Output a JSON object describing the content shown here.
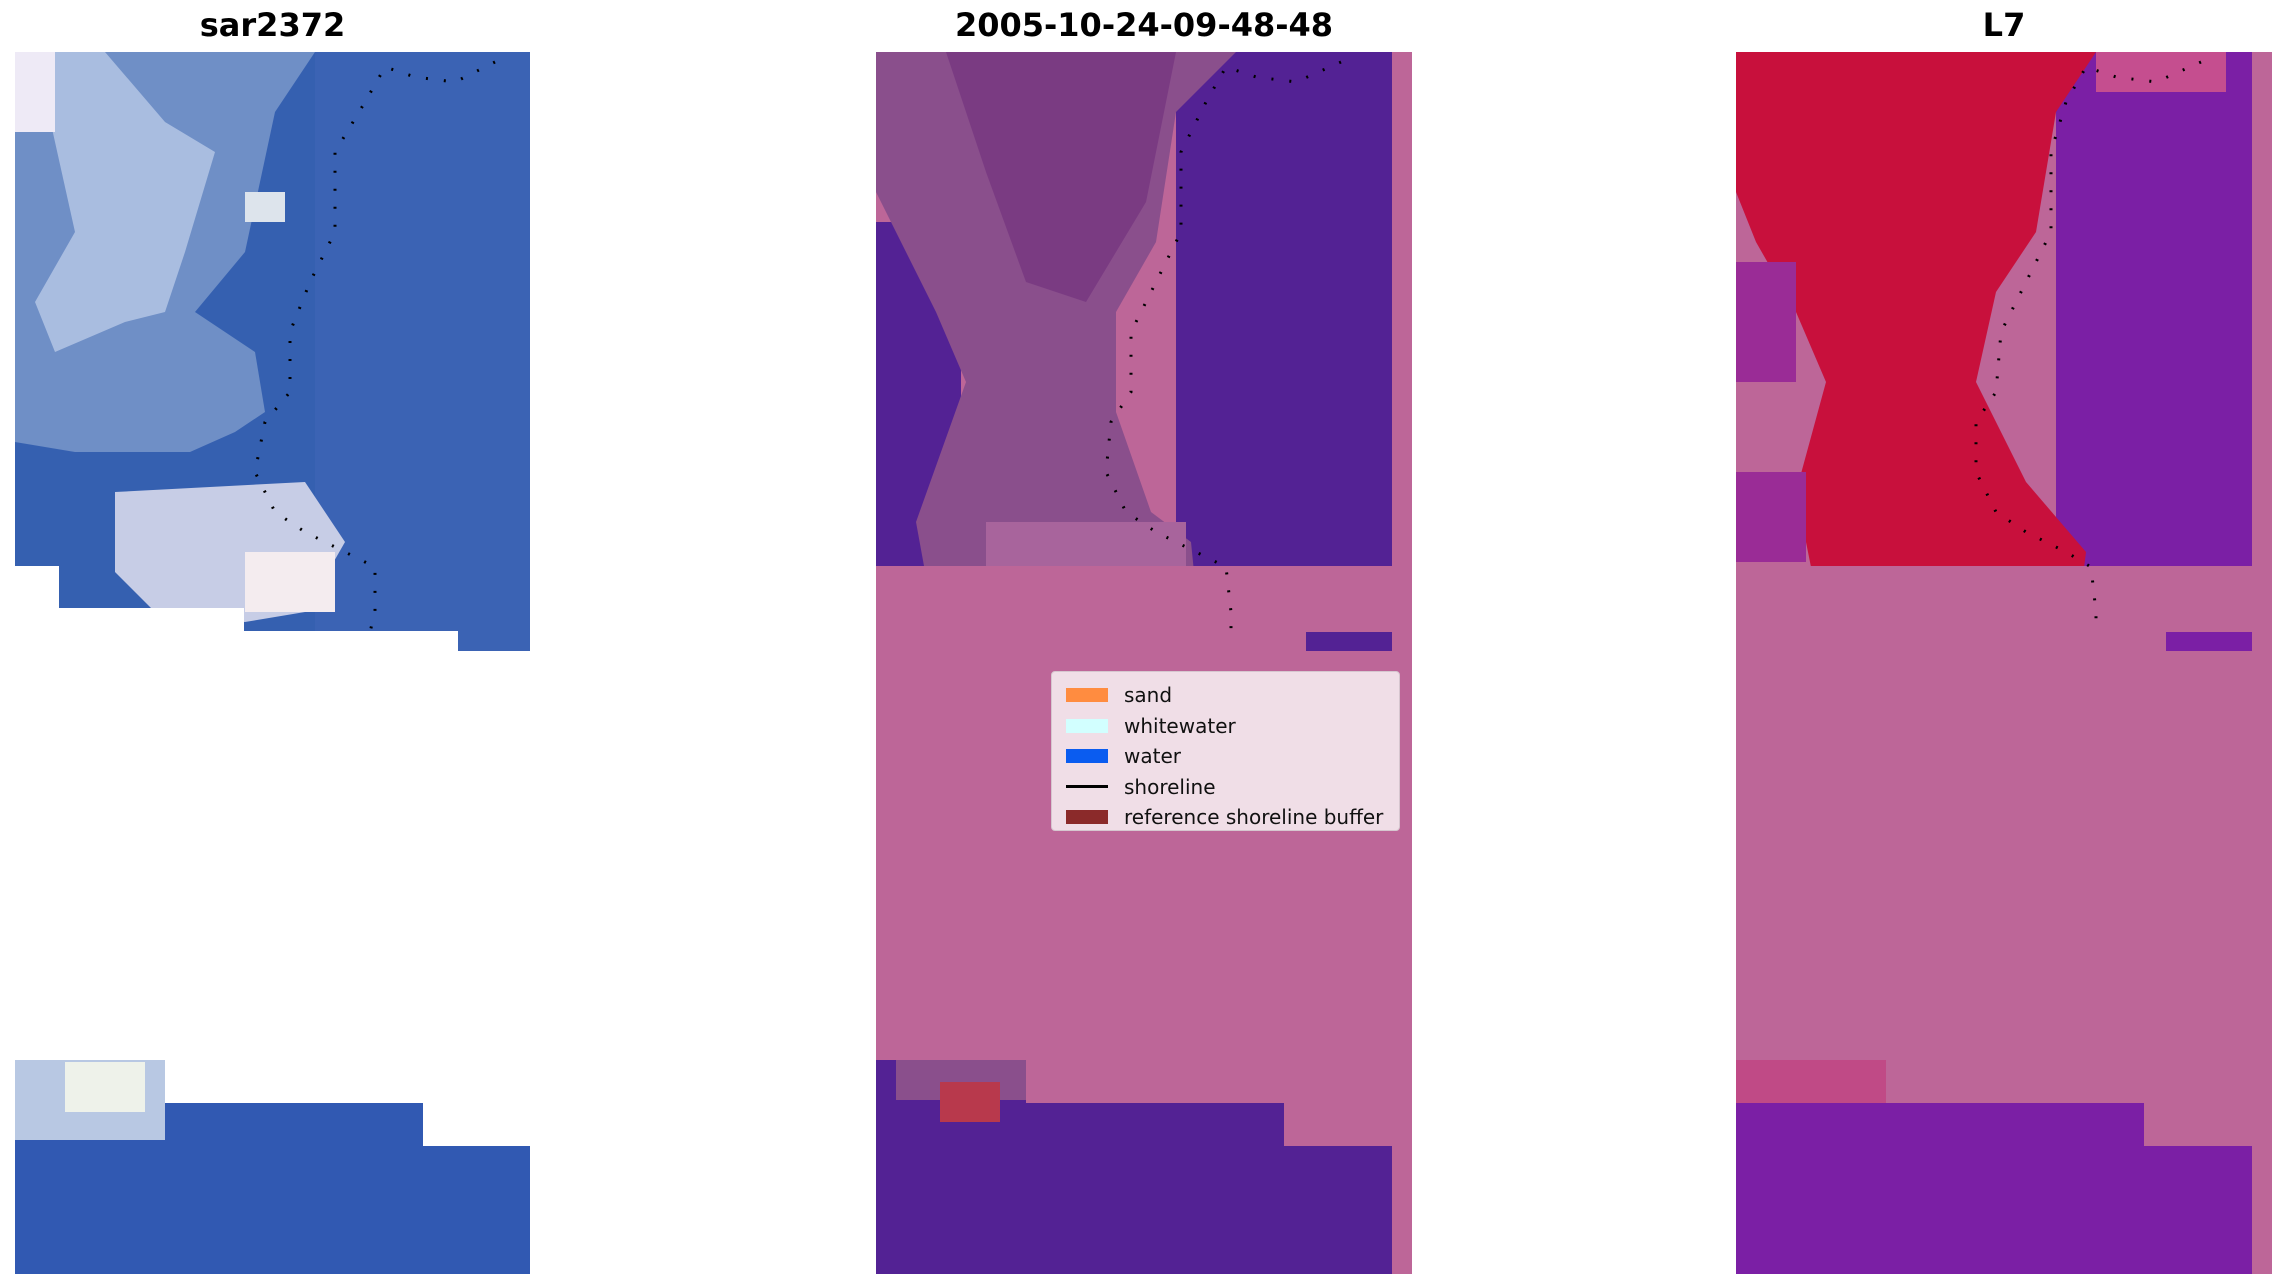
{
  "panels": [
    {
      "title": "sar2372"
    },
    {
      "title": "2005-10-24-09-48-48"
    },
    {
      "title": "L7"
    }
  ],
  "legend": {
    "items": [
      {
        "label": "sand",
        "color": "#ff8c40",
        "kind": "patch"
      },
      {
        "label": "whitewater",
        "color": "#d2ffff",
        "kind": "patch"
      },
      {
        "label": "water",
        "color": "#0a5cf0",
        "kind": "patch"
      },
      {
        "label": "shoreline",
        "color": "#000000",
        "kind": "line"
      },
      {
        "label": "reference shoreline buffer",
        "color": "#8b2a2a",
        "kind": "patch"
      }
    ]
  },
  "colors": {
    "rgb_water": "#3560b0",
    "rgb_foam": "#dbe4f2",
    "classified_water": "#532294",
    "classified_buffer_pink": "#bd6698",
    "classified_land_mauve": "#8a4f8c",
    "ndwi_red": "#c8103c",
    "ndwi_purple": "#7b1fa5",
    "nodata_white": "#ffffff",
    "shoreline": "#000000"
  }
}
